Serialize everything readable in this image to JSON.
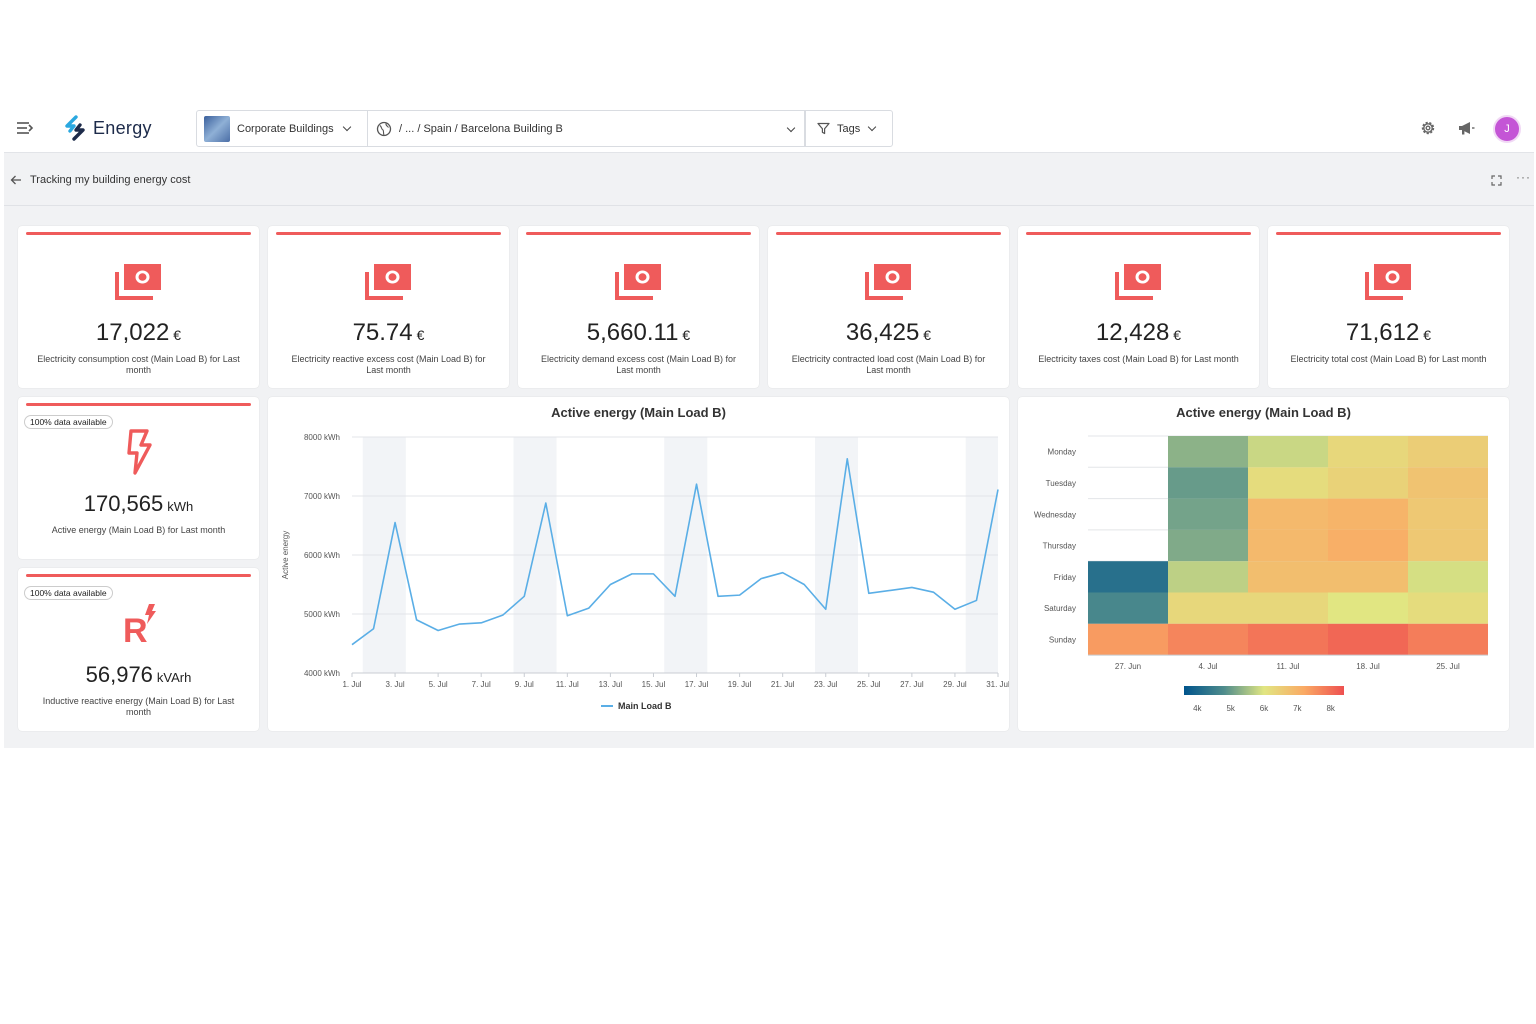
{
  "app": {
    "logo_text": "Energy",
    "org_selector": "Corporate Buildings",
    "location_path": "/ ... / Spain / Barcelona Building B",
    "tags_label": "Tags",
    "avatar_initial": "J"
  },
  "page": {
    "title": "Tracking my building energy cost",
    "accent_color": "#ef5b5b"
  },
  "kpis": [
    {
      "value": "17,022",
      "unit": "€",
      "description": "Electricity consumption cost (Main Load B) for Last month"
    },
    {
      "value": "75.74",
      "unit": "€",
      "description": "Electricity reactive excess cost (Main Load B) for Last month"
    },
    {
      "value": "5,660.11",
      "unit": "€",
      "description": "Electricity demand excess cost (Main Load B) for Last month"
    },
    {
      "value": "36,425",
      "unit": "€",
      "description": "Electricity contracted load cost (Main Load B) for Last month"
    },
    {
      "value": "12,428",
      "unit": "€",
      "description": "Electricity taxes cost (Main Load B) for Last month"
    },
    {
      "value": "71,612",
      "unit": "€",
      "description": "Electricity total cost (Main Load B) for Last month"
    }
  ],
  "energy_cards": [
    {
      "badge": "100% data available",
      "icon": "lightning-icon",
      "value": "170,565",
      "unit": "kWh",
      "description": "Active energy (Main Load B) for Last month"
    },
    {
      "badge": "100% data available",
      "icon": "reactive-energy-icon",
      "value": "56,976",
      "unit": "kVArh",
      "description": "Inductive reactive energy (Main Load B) for Last month"
    }
  ],
  "chart_data": [
    {
      "type": "line",
      "title": "Active energy (Main Load B)",
      "ylabel": "Active energy",
      "y_ticks": [
        "8000 kWh",
        "7000 kWh",
        "6000 kWh",
        "5000 kWh",
        "4000 kWh"
      ],
      "ylim": [
        4000,
        8000
      ],
      "x_tick_labels": [
        "1. Jul",
        "3. Jul",
        "5. Jul",
        "7. Jul",
        "9. Jul",
        "11. Jul",
        "13. Jul",
        "15. Jul",
        "17. Jul",
        "19. Jul",
        "21. Jul",
        "23. Jul",
        "25. Jul",
        "27. Jul",
        "29. Jul",
        "31. Jul"
      ],
      "x": [
        1,
        2,
        3,
        4,
        5,
        6,
        7,
        8,
        9,
        10,
        11,
        12,
        13,
        14,
        15,
        16,
        17,
        18,
        19,
        20,
        21,
        22,
        23,
        24,
        25,
        26,
        27,
        28,
        29,
        30,
        31
      ],
      "series": [
        {
          "name": "Main Load B",
          "color": "#5aaee6",
          "values": [
            4480,
            4750,
            6550,
            4900,
            4720,
            4830,
            4850,
            4980,
            5300,
            6880,
            4970,
            5100,
            5500,
            5680,
            5680,
            5300,
            7200,
            5300,
            5320,
            5600,
            5700,
            5500,
            5080,
            7630,
            5350,
            5400,
            5450,
            5370,
            5080,
            5230,
            7110
          ]
        }
      ],
      "weekend_bands": true,
      "grid": true,
      "legend": "bottom-center"
    },
    {
      "type": "heatmap",
      "title": "Active energy (Main Load B)",
      "x_tick_labels": [
        "27. Jun",
        "4. Jul",
        "11. Jul",
        "18. Jul",
        "25. Jul"
      ],
      "y_labels": [
        "Monday",
        "Tuesday",
        "Wednesday",
        "Thursday",
        "Friday",
        "Saturday",
        "Sunday"
      ],
      "values": [
        [
          null,
          5300,
          5800,
          6300,
          6500
        ],
        [
          null,
          5000,
          6200,
          6400,
          6700
        ],
        [
          null,
          5100,
          6900,
          7000,
          6600
        ],
        [
          null,
          5200,
          6900,
          7100,
          6600
        ],
        [
          4200,
          5700,
          6800,
          6800,
          5900
        ],
        [
          4700,
          6300,
          6300,
          6000,
          6200
        ],
        [
          7400,
          7700,
          7900,
          8100,
          7800
        ]
      ],
      "colorbar": {
        "labels": [
          "4k",
          "5k",
          "6k",
          "7k",
          "8k"
        ],
        "min": 3600,
        "max": 8400
      },
      "legend": "bottom-center"
    }
  ]
}
